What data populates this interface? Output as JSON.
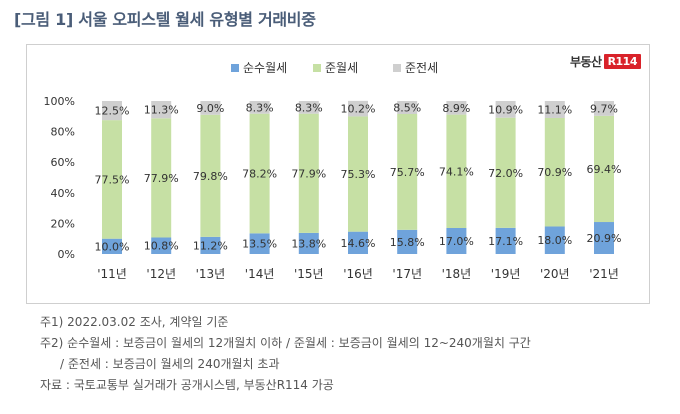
{
  "title": "[그림 1] 서울 오피스텔 월세 유형별 거래비중",
  "logo": {
    "text": "부동산",
    "mark": "R114"
  },
  "chart_data": {
    "type": "bar",
    "stacked": true,
    "categories": [
      "'11년",
      "'12년",
      "'13년",
      "'14년",
      "'15년",
      "'16년",
      "'17년",
      "'18년",
      "'19년",
      "'20년",
      "'21년"
    ],
    "series": [
      {
        "name": "순수월세",
        "color": "#6fa3db",
        "values": [
          10.0,
          10.8,
          11.2,
          13.5,
          13.8,
          14.6,
          15.8,
          17.0,
          17.1,
          18.0,
          20.9
        ],
        "labels": [
          "10.0%",
          "10.8%",
          "11.2%",
          "13.5%",
          "13.8%",
          "14.6%",
          "15.8%",
          "17.0%",
          "17.1%",
          "18.0%",
          "20.9%"
        ]
      },
      {
        "name": "준월세",
        "color": "#c6e0a4",
        "values": [
          77.5,
          77.9,
          79.8,
          78.2,
          77.9,
          75.3,
          75.7,
          74.1,
          72.0,
          70.9,
          69.4
        ],
        "labels": [
          "77.5%",
          "77.9%",
          "79.8%",
          "78.2%",
          "77.9%",
          "75.3%",
          "75.7%",
          "74.1%",
          "72.0%",
          "70.9%",
          "69.4%"
        ]
      },
      {
        "name": "준전세",
        "color": "#cfcfcf",
        "values": [
          12.5,
          11.3,
          9.0,
          8.3,
          8.3,
          10.2,
          8.5,
          8.9,
          10.9,
          11.1,
          9.7
        ],
        "labels": [
          "12.5%",
          "11.3%",
          "9.0%",
          "8.3%",
          "8.3%",
          "10.2%",
          "8.5%",
          "8.9%",
          "10.9%",
          "11.1%",
          "9.7%"
        ]
      }
    ],
    "yticks": [
      "0%",
      "20%",
      "40%",
      "60%",
      "80%",
      "100%"
    ],
    "ylim": [
      0,
      100
    ],
    "grid": false,
    "legend": "top-center"
  },
  "notes": [
    "주1) 2022.03.02 조사, 계약일 기준",
    "주2) 순수월세 : 보증금이 월세의 12개월치 이하 / 준월세 : 보증금이 월세의 12~240개월치 구간",
    "/ 준전세 : 보증금이 월세의 240개월치 초과",
    "자료 : 국토교통부 실거래가 공개시스템, 부동산R114 가공"
  ]
}
